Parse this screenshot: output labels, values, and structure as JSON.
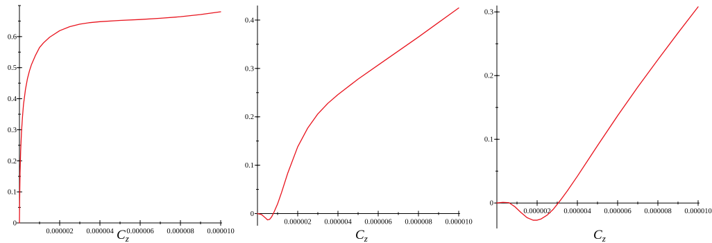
{
  "style": {
    "curve_color": "#e8121c"
  },
  "chart_data": [
    {
      "type": "line",
      "xlabel": "C_z",
      "xlabel_main": "C",
      "xlabel_sub": "z",
      "xlim": [
        0,
        1e-05
      ],
      "ylim": [
        0,
        0.7
      ],
      "x_ticks": [
        "0.000002",
        "0.000004",
        "0.000006",
        "0.000008",
        "0.000010"
      ],
      "y_ticks": [
        0,
        0.1,
        0.2,
        0.3,
        0.4,
        0.5,
        0.6
      ],
      "y_tick_labels": [
        "0",
        "0.1",
        "0.2",
        "0.3",
        "0.4",
        "0.5",
        "0.6"
      ],
      "series": [
        {
          "x": [
            0,
            1e-08,
            3e-08,
            6e-08,
            1e-07,
            1.5e-07,
            2e-07,
            3e-07,
            4e-07,
            5e-07,
            6e-07,
            8e-07,
            1e-06,
            1.2e-06,
            1.5e-06,
            2e-06,
            2.5e-06,
            3e-06,
            3.5e-06,
            4e-06,
            5e-06,
            6e-06,
            7e-06,
            8e-06,
            9e-06,
            1e-05
          ],
          "y": [
            0,
            0.07,
            0.16,
            0.23,
            0.29,
            0.34,
            0.38,
            0.43,
            0.465,
            0.49,
            0.51,
            0.54,
            0.565,
            0.58,
            0.598,
            0.619,
            0.632,
            0.64,
            0.645,
            0.648,
            0.652,
            0.655,
            0.659,
            0.664,
            0.671,
            0.68
          ]
        }
      ]
    },
    {
      "type": "line",
      "xlabel": "C_z",
      "xlabel_main": "C",
      "xlabel_sub": "z",
      "xlim": [
        0,
        1e-05
      ],
      "ylim": [
        -0.025,
        0.43
      ],
      "x_ticks": [
        "0.000002",
        "0.000004",
        "0.000006",
        "0.000008",
        "0.000010"
      ],
      "y_ticks": [
        0,
        0.1,
        0.2,
        0.3,
        0.4
      ],
      "y_tick_labels": [
        "0",
        "0.1",
        "0.2",
        "0.3",
        "0.4"
      ],
      "series": [
        {
          "x": [
            0,
            2e-07,
            4e-07,
            5e-07,
            6e-07,
            7e-07,
            8e-07,
            1e-06,
            1.2e-06,
            1.5e-06,
            2e-06,
            2.5e-06,
            3e-06,
            3.5e-06,
            4e-06,
            5e-06,
            6e-06,
            7e-06,
            8e-06,
            9e-06,
            1e-05
          ],
          "y": [
            0,
            -0.002,
            -0.009,
            -0.013,
            -0.012,
            -0.007,
            0.001,
            0.02,
            0.044,
            0.083,
            0.138,
            0.177,
            0.206,
            0.228,
            0.246,
            0.278,
            0.307,
            0.336,
            0.365,
            0.395,
            0.425
          ]
        }
      ]
    },
    {
      "type": "line",
      "xlabel": "C_z",
      "xlabel_main": "C",
      "xlabel_sub": "z",
      "xlim": [
        0,
        1e-05
      ],
      "ylim": [
        -0.04,
        0.31
      ],
      "x_ticks": [
        "0.000002",
        "0.000004",
        "0.000006",
        "0.000008",
        "0.000010"
      ],
      "y_ticks": [
        0,
        0.1,
        0.2,
        0.3
      ],
      "y_tick_labels": [
        "0",
        "0.1",
        "0.2",
        "0.3"
      ],
      "series": [
        {
          "x": [
            0,
            3e-07,
            6e-07,
            9e-07,
            1.2e-06,
            1.5e-06,
            1.8e-06,
            2e-06,
            2.2e-06,
            2.5e-06,
            2.8e-06,
            3e-06,
            3.2e-06,
            3.5e-06,
            4e-06,
            4.5e-06,
            5e-06,
            6e-06,
            7e-06,
            8e-06,
            9e-06,
            1e-05
          ],
          "y": [
            0,
            0.001,
            0.0005,
            -0.006,
            -0.015,
            -0.023,
            -0.027,
            -0.027,
            -0.025,
            -0.019,
            -0.01,
            -0.002,
            0.006,
            0.019,
            0.042,
            0.066,
            0.09,
            0.137,
            0.182,
            0.225,
            0.267,
            0.308
          ]
        }
      ]
    }
  ]
}
